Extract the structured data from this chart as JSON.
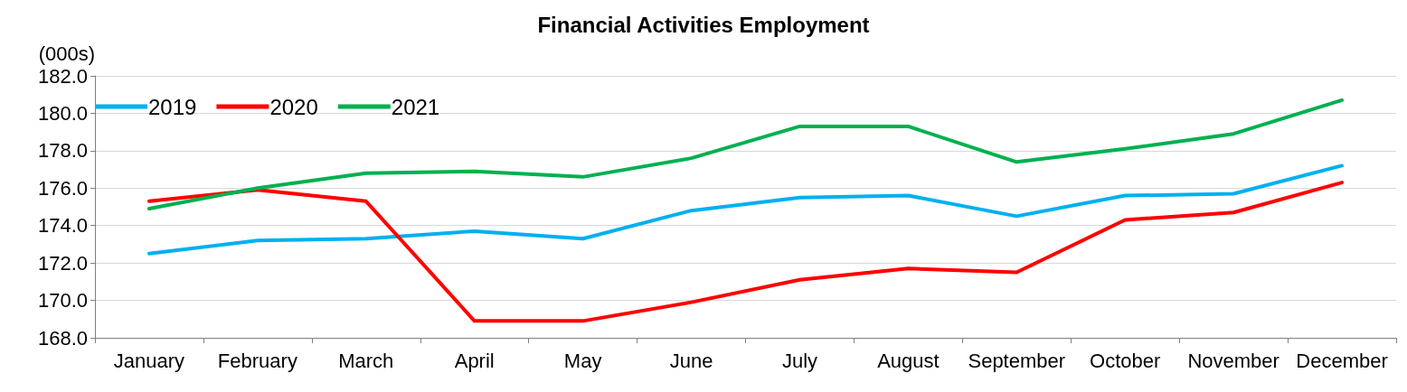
{
  "chart_data": {
    "type": "line",
    "title": "Financial Activities Employment",
    "ylabel": "(000s)",
    "categories": [
      "January",
      "February",
      "March",
      "April",
      "May",
      "June",
      "July",
      "August",
      "September",
      "October",
      "November",
      "December"
    ],
    "series": [
      {
        "name": "2019",
        "color": "#00b0f0",
        "values": [
          172.5,
          173.2,
          173.3,
          173.7,
          173.3,
          174.8,
          175.5,
          175.6,
          174.5,
          175.6,
          175.7,
          177.2
        ]
      },
      {
        "name": "2020",
        "color": "#ff0000",
        "values": [
          175.3,
          175.9,
          175.3,
          168.9,
          168.9,
          169.9,
          171.1,
          171.7,
          171.5,
          174.3,
          174.7,
          176.3
        ]
      },
      {
        "name": "2021",
        "color": "#00b050",
        "values": [
          174.9,
          176.0,
          176.8,
          176.9,
          176.6,
          177.6,
          179.3,
          179.3,
          177.4,
          178.1,
          178.9,
          180.7
        ]
      }
    ],
    "ylim": [
      168,
      182
    ],
    "yticks": [
      {
        "value": 168,
        "label": "168.0"
      },
      {
        "value": 170,
        "label": "170.0"
      },
      {
        "value": 172,
        "label": "172.0"
      },
      {
        "value": 174,
        "label": "174.0"
      },
      {
        "value": 176,
        "label": "176.0"
      },
      {
        "value": 178,
        "label": "178.0"
      },
      {
        "value": 180,
        "label": "180.0"
      },
      {
        "value": 182,
        "label": "182.0"
      }
    ],
    "grid": "y",
    "legend": "top left",
    "marker": "none",
    "line_style": "solid"
  }
}
